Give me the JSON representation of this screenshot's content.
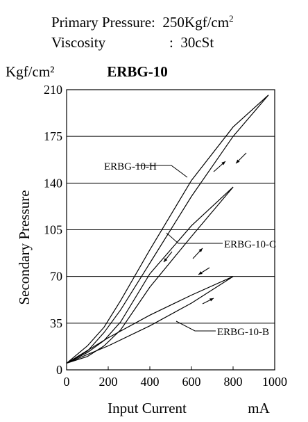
{
  "conditions": {
    "pressure_label": "Primary Pressure:",
    "pressure_value": "250Kgf/cm",
    "pressure_sup": "2",
    "viscosity_label": "Viscosity",
    "viscosity_value": ":  30cSt"
  },
  "chart_data": {
    "type": "line",
    "title": "ERBG-10",
    "xlabel": "Input Current",
    "xunit": "mA",
    "ylabel": "Secondary Pressure",
    "yunit": "Kgf/cm²",
    "xlim": [
      0,
      1000
    ],
    "ylim": [
      0,
      210
    ],
    "xticks": [
      0,
      200,
      400,
      600,
      800,
      1000
    ],
    "yticks": [
      0,
      35,
      70,
      105,
      140,
      175,
      210
    ],
    "grid": "horizontal",
    "series": [
      {
        "name": "ERBG-10-H",
        "x": [
          0,
          100,
          180,
          260,
          400,
          600,
          800,
          970
        ],
        "y": [
          5,
          18,
          32,
          52,
          90,
          142,
          182,
          206
        ],
        "x_return": [
          970,
          800,
          600,
          400,
          260,
          180,
          100,
          0
        ],
        "y_return": [
          206,
          175,
          130,
          80,
          45,
          28,
          14,
          5
        ]
      },
      {
        "name": "ERBG-10-C",
        "x": [
          0,
          100,
          180,
          260,
          400,
          600,
          800
        ],
        "y": [
          5,
          13,
          22,
          36,
          72,
          108,
          137
        ],
        "x_return": [
          800,
          600,
          400,
          260,
          180,
          100,
          0
        ],
        "y_return": [
          137,
          100,
          62,
          30,
          18,
          10,
          5
        ]
      },
      {
        "name": "ERBG-10-B",
        "x": [
          0,
          200,
          400,
          600,
          800
        ],
        "y": [
          5,
          24,
          41,
          56,
          70
        ],
        "x_return": [
          800,
          600,
          400,
          200,
          0
        ],
        "y_return": [
          70,
          50,
          33,
          18,
          5
        ]
      }
    ]
  }
}
